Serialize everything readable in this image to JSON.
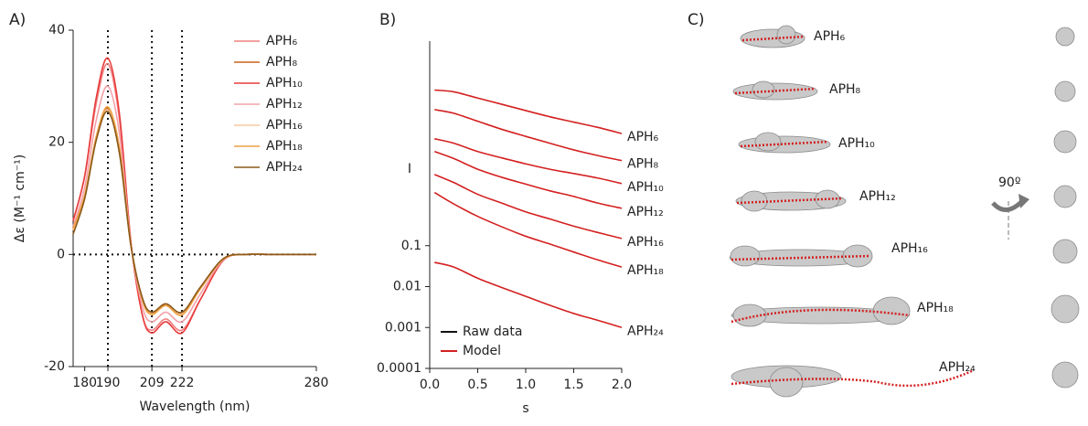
{
  "chart_data": [
    {
      "type": "line",
      "label": "A)",
      "xlabel": "Wavelength (nm)",
      "ylabel": "Δε (M⁻¹ cm⁻¹)",
      "x": [
        175,
        180,
        185,
        190,
        195,
        200,
        205,
        209,
        215,
        222,
        230,
        240,
        250,
        260,
        270,
        280
      ],
      "series": [
        {
          "name": "APH₆",
          "color": "#f08080",
          "values": [
            6,
            14,
            27,
            34,
            24,
            2,
            -11,
            -13.5,
            -11.5,
            -13.5,
            -8,
            -1,
            0,
            0,
            0,
            0
          ]
        },
        {
          "name": "APH₈",
          "color": "#c8641e",
          "values": [
            4.5,
            10,
            21,
            26,
            18.5,
            1.5,
            -8,
            -10.5,
            -9,
            -10.5,
            -6,
            -0.7,
            0,
            0,
            0,
            0
          ]
        },
        {
          "name": "APH₁₀",
          "color": "#e83c3c",
          "values": [
            6,
            14,
            28,
            35,
            25,
            2,
            -11,
            -14,
            -12,
            -14,
            -8,
            -1,
            0,
            0,
            0,
            0
          ]
        },
        {
          "name": "APH₁₂",
          "color": "#f4a0a8",
          "values": [
            5,
            12,
            24,
            30,
            21.5,
            1.7,
            -9.5,
            -12,
            -10.3,
            -12,
            -7,
            -0.9,
            0,
            0,
            0,
            0
          ]
        },
        {
          "name": "APH₁₆",
          "color": "#f8c8a0",
          "values": [
            4.3,
            10.3,
            20.5,
            25.8,
            18.3,
            1.4,
            -8.2,
            -10.6,
            -9,
            -10.6,
            -6,
            -0.7,
            0,
            0,
            0,
            0
          ]
        },
        {
          "name": "APH₁₈",
          "color": "#f0a040",
          "values": [
            4.6,
            10.6,
            21,
            26.3,
            19,
            1.6,
            -8.3,
            -10.7,
            -9.1,
            -10.8,
            -6.1,
            -0.8,
            0,
            0,
            0,
            0
          ]
        },
        {
          "name": "APH₂₄",
          "color": "#8b5a1a",
          "values": [
            3.6,
            10,
            20.4,
            25.5,
            18,
            1.4,
            -7.9,
            -10.3,
            -8.8,
            -10.3,
            -5.8,
            -0.7,
            0,
            0,
            0,
            0
          ]
        }
      ],
      "xlim": [
        175,
        280
      ],
      "xticks": [
        180,
        190,
        209,
        222,
        280
      ],
      "ylim": [
        -20,
        40
      ],
      "yticks": [
        -20,
        0,
        20,
        40
      ],
      "vlines": [
        190,
        209,
        222
      ],
      "hlines": [
        0
      ],
      "legend": "upper right"
    },
    {
      "type": "line",
      "label": "B)",
      "xlabel": "s",
      "ylabel": "I",
      "ylog": true,
      "x": [
        0.05,
        0.25,
        0.5,
        0.75,
        1.0,
        1.25,
        1.5,
        1.75,
        2.0
      ],
      "series": [
        {
          "name": "APH₆",
          "color": "#d42020",
          "values": [
            637,
            577,
            406,
            286,
            201,
            142,
            105,
            78,
            55
          ]
        },
        {
          "name": "APH₈",
          "color": "#d42020",
          "values": [
            212,
            173,
            110,
            70,
            47,
            32,
            22,
            16,
            12
          ]
        },
        {
          "name": "APH₁₀",
          "color": "#d42020",
          "values": [
            41,
            32,
            20,
            14,
            10,
            7.4,
            5.8,
            4.5,
            3.3
          ]
        },
        {
          "name": "APH₁₂",
          "color": "#d42020",
          "values": [
            20,
            13.5,
            7.4,
            4.7,
            3.2,
            2.2,
            1.6,
            1.1,
            0.82
          ]
        },
        {
          "name": "APH₁₆",
          "color": "#d42020",
          "values": [
            5.5,
            3.5,
            1.8,
            1.1,
            0.67,
            0.45,
            0.3,
            0.21,
            0.15
          ]
        },
        {
          "name": "APH₁₈",
          "color": "#d42020",
          "values": [
            2.0,
            1.05,
            0.52,
            0.29,
            0.17,
            0.11,
            0.07,
            0.045,
            0.03
          ]
        },
        {
          "name": "APH₂₄",
          "color": "#d42020",
          "values": [
            0.039,
            0.03,
            0.016,
            0.0095,
            0.0058,
            0.0035,
            0.0022,
            0.0015,
            0.001
          ]
        }
      ],
      "legend_entries": [
        {
          "name": "Raw data",
          "color": "#111111"
        },
        {
          "name": "Model",
          "color": "#d42020"
        }
      ],
      "legend": "lower left",
      "direct_labels": true,
      "xlim": [
        0,
        2
      ],
      "xticks": [
        {
          "value": 0,
          "label": "0.0"
        },
        0.5,
        {
          "value": 1,
          "label": "1.0"
        },
        1.5,
        {
          "value": 2,
          "label": "2.0"
        }
      ],
      "ylim": [
        0.0001,
        10000
      ],
      "yticks": [
        0.0001,
        0.001,
        0.01,
        0.1
      ]
    }
  ],
  "structures": {
    "label": "C)",
    "items": [
      "APH₆",
      "APH₈",
      "APH₁₀",
      "APH₁₂",
      "APH₁₆",
      "APH₁₈",
      "APH₂₄"
    ],
    "rotation": "90º"
  }
}
